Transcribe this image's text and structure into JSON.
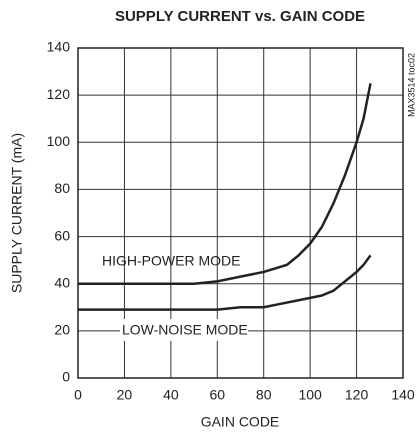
{
  "chart_data": {
    "type": "line",
    "title": "SUPPLY CURRENT vs. GAIN CODE",
    "x_label": "GAIN CODE",
    "y_label": "SUPPLY CURRENT (mA)",
    "side_note": "MAX3514 toc02",
    "x": [
      0,
      10,
      20,
      30,
      40,
      50,
      60,
      70,
      80,
      90,
      95,
      100,
      105,
      110,
      115,
      120,
      123,
      126
    ],
    "series": [
      {
        "name": "HIGH-POWER MODE",
        "color": "#222222",
        "values": [
          40,
          40,
          40,
          40,
          40,
          40,
          41,
          43,
          45,
          48,
          52,
          57,
          64,
          74,
          86,
          100,
          110,
          125
        ]
      },
      {
        "name": "LOW-NOISE MODE",
        "color": "#222222",
        "values": [
          29,
          29,
          29,
          29,
          29,
          29,
          29,
          30,
          30,
          32,
          33,
          34,
          35,
          37,
          41,
          45,
          48,
          52
        ]
      }
    ],
    "xlim": [
      0,
      140
    ],
    "xticks": [
      0,
      20,
      40,
      60,
      80,
      100,
      120,
      140
    ],
    "ylim": [
      0,
      140
    ],
    "yticks": [
      0,
      20,
      40,
      60,
      80,
      100,
      120,
      140
    ],
    "grid": true
  }
}
